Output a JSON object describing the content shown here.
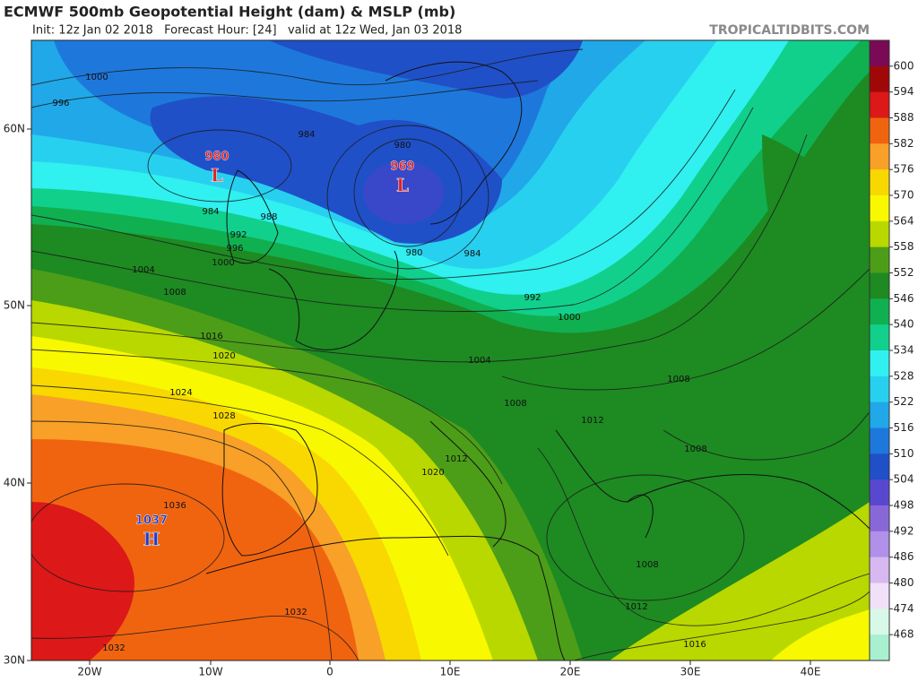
{
  "header": {
    "title": "ECMWF 500mb Geopotential Height (dam) & MSLP (mb)",
    "subtitle": "Init: 12z Jan 02 2018   Forecast Hour: [24]   valid at 12z Wed, Jan 03 2018",
    "source": "TROPICALTIDBITS.COM"
  },
  "colorbar": {
    "levels": [
      600,
      594,
      588,
      582,
      576,
      570,
      564,
      558,
      552,
      546,
      540,
      534,
      528,
      522,
      516,
      510,
      504,
      498,
      492,
      486,
      480,
      474,
      468
    ],
    "colors": [
      "#7a0a55",
      "#a00808",
      "#dc1818",
      "#f06410",
      "#f8a028",
      "#f8d800",
      "#f8f800",
      "#b8d800",
      "#4c9e18",
      "#1e8a22",
      "#10b050",
      "#10d08c",
      "#30f0f0",
      "#28d0f0",
      "#20a8e8",
      "#1e78dc",
      "#2050c8",
      "#5848d0",
      "#8868d8",
      "#b090e8",
      "#d8b8f0",
      "#f0e0f8",
      "#d8f8e8",
      "#a8f0d0"
    ]
  },
  "axes": {
    "latitudes": [
      "60N",
      "50N",
      "40N",
      "30N"
    ],
    "longitudes": [
      "20W",
      "10W",
      "0",
      "10E",
      "20E",
      "30E",
      "40E"
    ]
  },
  "pressure_centers": [
    {
      "value": 980,
      "label": "L"
    },
    {
      "value": 969,
      "label": "L"
    },
    {
      "value": 1037,
      "label": "H"
    }
  ],
  "isobar_labels": [
    1000,
    996,
    984,
    980,
    984,
    988,
    992,
    996,
    1000,
    1004,
    1008,
    1016,
    1020,
    1024,
    1028,
    1036,
    1032,
    1032,
    980,
    984,
    992,
    1000,
    1004,
    1008,
    1008,
    1012,
    1008,
    1012,
    1020,
    1008,
    1012,
    1016
  ]
}
